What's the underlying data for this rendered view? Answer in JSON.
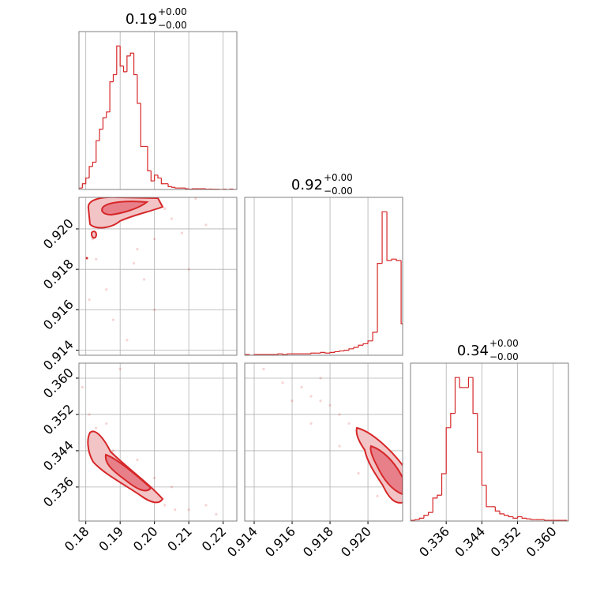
{
  "chart_data": [
    {
      "type": "histogram",
      "title": "0.19",
      "title_plus": "+0.00",
      "title_minus": "−0.00",
      "color": "#d62728",
      "bins": [
        0.178,
        0.179,
        0.18,
        0.181,
        0.182,
        0.183,
        0.184,
        0.185,
        0.186,
        0.187,
        0.188,
        0.189,
        0.19,
        0.191,
        0.192,
        0.193,
        0.194,
        0.195,
        0.196,
        0.197,
        0.198,
        0.199,
        0.2,
        0.201,
        0.202,
        0.203,
        0.204,
        0.205,
        0.206,
        0.207,
        0.208,
        0.209,
        0.21,
        0.211,
        0.212,
        0.213,
        0.214,
        0.215,
        0.216,
        0.217,
        0.218,
        0.219,
        0.22,
        0.221,
        0.222,
        0.223,
        0.224
      ],
      "values": [
        0.01,
        0.04,
        0.08,
        0.16,
        0.19,
        0.34,
        0.42,
        0.5,
        0.54,
        0.75,
        0.8,
        1.0,
        0.86,
        0.82,
        0.93,
        0.95,
        0.8,
        0.6,
        0.3,
        0.3,
        0.13,
        0.06,
        0.1,
        0.08,
        0.04,
        0.04,
        0.02,
        0.015,
        0.01,
        0.01,
        0.01,
        0.005,
        0.002,
        0.005,
        0.005,
        0.005,
        0.005,
        0.002,
        0.003,
        0.002,
        0.002,
        0,
        0.002,
        0,
        0.003,
        0
      ],
      "xlim": [
        0.178,
        0.224
      ],
      "ylim": [
        0,
        1.1
      ],
      "xticks": [
        0.18,
        0.19,
        {
          "value": 0.2,
          "label": "0.20"
        },
        0.21,
        0.22
      ],
      "yticks": [],
      "grid": true,
      "xtick_labels": false,
      "ytick_labels": false
    },
    {
      "type": "scatter",
      "color": "#d62728",
      "x": [
        0.183,
        0.186,
        0.19,
        0.195,
        0.2,
        0.205,
        0.21,
        0.188,
        0.192,
        0.2,
        0.185,
        0.197,
        0.181,
        0.203,
        0.208,
        0.215,
        0.19,
        0.194,
        0.182,
        0.212
      ],
      "y": [
        0.9185,
        0.917,
        0.9205,
        0.919,
        0.9195,
        0.9205,
        0.918,
        0.9155,
        0.9145,
        0.916,
        0.9205,
        0.9175,
        0.9165,
        0.921,
        0.9198,
        0.9202,
        0.9212,
        0.9183,
        0.9195,
        0.9215
      ],
      "xlim": [
        0.178,
        0.224
      ],
      "ylim": [
        0.91375,
        0.92156
      ],
      "xticks": [
        0.18,
        0.19,
        {
          "value": 0.2,
          "label": "0.20"
        },
        0.21,
        0.22
      ],
      "yticks": [
        0.914,
        0.916,
        0.918,
        {
          "value": 0.92,
          "label": "0.920"
        }
      ],
      "grid": true,
      "xtick_labels": false,
      "ytick_labels": true
    },
    {
      "type": "histogram",
      "title": "0.92",
      "title_plus": "+0.00",
      "title_minus": "−0.00",
      "color": "#d62728",
      "bins": [
        0.9135,
        0.91375,
        0.914,
        0.91425,
        0.9145,
        0.91475,
        0.915,
        0.91525,
        0.9155,
        0.91575,
        0.916,
        0.91625,
        0.9165,
        0.91675,
        0.917,
        0.91725,
        0.9175,
        0.91775,
        0.918,
        0.91825,
        0.9185,
        0.91875,
        0.919,
        0.91925,
        0.9195,
        0.91975,
        0.92,
        0.92025,
        0.9205,
        0.92075,
        0.921,
        0.92125,
        0.9215,
        0.92175,
        0.922
      ],
      "values": [
        0.005,
        0,
        0.005,
        0.005,
        0.005,
        0.005,
        0.005,
        0.01,
        0.005,
        0.01,
        0.01,
        0.01,
        0.01,
        0.01,
        0.015,
        0.015,
        0.02,
        0.015,
        0.02,
        0.025,
        0.03,
        0.035,
        0.045,
        0.055,
        0.07,
        0.08,
        0.1,
        0.16,
        0.64,
        1.0,
        0.66,
        0.67,
        0.66,
        0.22
      ],
      "xlim": [
        0.9135,
        0.92183
      ],
      "ylim": [
        0,
        1.1
      ],
      "xticks": [
        0.914,
        0.916,
        0.918,
        {
          "value": 0.92,
          "label": "0.920"
        }
      ],
      "yticks": [],
      "grid": true,
      "xtick_labels": false,
      "ytick_labels": false
    },
    {
      "type": "scatter",
      "color": "#d62728",
      "x": [
        0.179,
        0.181,
        0.183,
        0.185,
        0.188,
        0.19,
        0.192,
        0.195,
        0.198,
        0.2,
        0.203,
        0.206,
        0.21,
        0.215,
        0.218,
        0.186,
        0.195,
        0.2,
        0.205,
        0.19
      ],
      "y": [
        0.358,
        0.352,
        0.349,
        0.346,
        0.344,
        0.341,
        0.34,
        0.337,
        0.334,
        0.333,
        0.332,
        0.331,
        0.331,
        0.332,
        0.33,
        0.35,
        0.342,
        0.338,
        0.336,
        0.362
      ],
      "xlim": [
        0.178,
        0.224
      ],
      "ylim": [
        0.3285,
        0.3633
      ],
      "xticks": [
        0.18,
        0.19,
        {
          "value": 0.2,
          "label": "0.20"
        },
        0.21,
        0.22
      ],
      "yticks": [
        0.336,
        0.344,
        0.352,
        {
          "value": 0.36,
          "label": "0.360"
        }
      ],
      "grid": true,
      "xtick_labels": true,
      "ytick_labels": true
    },
    {
      "type": "scatter",
      "color": "#d62728",
      "x": [
        0.9145,
        0.9155,
        0.9165,
        0.917,
        0.9175,
        0.918,
        0.9185,
        0.919,
        0.9195,
        0.92,
        0.9205,
        0.921,
        0.9213,
        0.9195,
        0.9185,
        0.917,
        0.916,
        0.9205,
        0.921,
        0.9175
      ],
      "y": [
        0.362,
        0.359,
        0.358,
        0.356,
        0.355,
        0.354,
        0.352,
        0.35,
        0.347,
        0.345,
        0.343,
        0.34,
        0.337,
        0.339,
        0.345,
        0.35,
        0.355,
        0.334,
        0.336,
        0.36
      ],
      "xlim": [
        0.9135,
        0.92183
      ],
      "ylim": [
        0.3285,
        0.3633
      ],
      "xticks": [
        0.914,
        0.916,
        0.918,
        {
          "value": 0.92,
          "label": "0.920"
        }
      ],
      "yticks": [
        0.336,
        0.344,
        0.352,
        {
          "value": 0.36,
          "label": "0.360"
        }
      ],
      "grid": true,
      "xtick_labels": true,
      "ytick_labels": false
    },
    {
      "type": "histogram",
      "title": "0.34",
      "title_plus": "+0.00",
      "title_minus": "−0.00",
      "color": "#d62728",
      "bins": [
        0.328,
        0.329,
        0.33,
        0.331,
        0.332,
        0.333,
        0.334,
        0.335,
        0.336,
        0.337,
        0.338,
        0.339,
        0.34,
        0.341,
        0.342,
        0.343,
        0.344,
        0.345,
        0.346,
        0.347,
        0.348,
        0.349,
        0.35,
        0.351,
        0.352,
        0.353,
        0.354,
        0.355,
        0.356,
        0.357,
        0.358,
        0.359,
        0.36,
        0.361,
        0.362,
        0.363
      ],
      "values": [
        0.005,
        0.01,
        0.02,
        0.04,
        0.06,
        0.16,
        0.18,
        0.33,
        0.65,
        0.75,
        1.0,
        0.93,
        0.93,
        1.0,
        0.75,
        0.48,
        0.25,
        0.1,
        0.1,
        0.07,
        0.05,
        0.04,
        0.03,
        0.02,
        0.03,
        0.02,
        0.015,
        0.01,
        0.01,
        0.01,
        0.005,
        0.005,
        0.005,
        0.005,
        0.005
      ],
      "xlim": [
        0.328,
        0.3634
      ],
      "ylim": [
        0,
        1.1
      ],
      "xticks": [
        0.336,
        0.344,
        0.352,
        {
          "value": 0.36,
          "label": "0.360"
        }
      ],
      "yticks": [],
      "grid": true,
      "xtick_labels": true,
      "ytick_labels": false
    }
  ]
}
